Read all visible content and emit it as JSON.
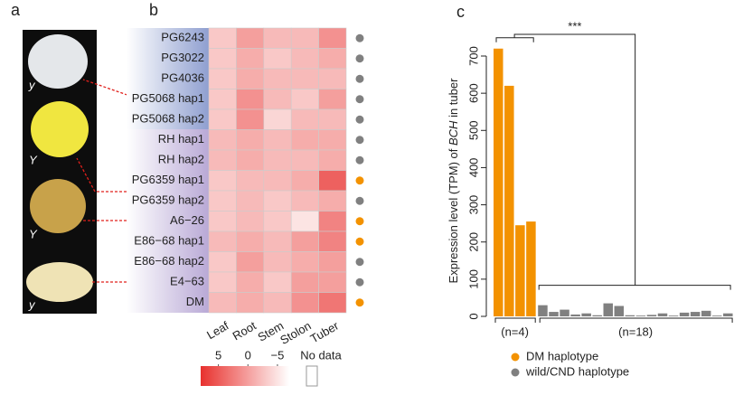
{
  "panel_labels": [
    "a",
    "b",
    "c"
  ],
  "panel_a": {
    "tuber_labels": [
      "y",
      "Y",
      "Y",
      "y"
    ]
  },
  "chart_data": [
    {
      "type": "heatmap",
      "rows": [
        "PG6243",
        "PG3022",
        "PG4036",
        "PG5068 hap1",
        "PG5068 hap2",
        "RH hap1",
        "RH hap2",
        "PG6359 hap1",
        "PG6359 hap2",
        "A6−26",
        "E86−68 hap1",
        "E86−68 hap2",
        "E4−63",
        "DM"
      ],
      "columns": [
        "Leaf",
        "Root",
        "Stem",
        "Stolon",
        "Tuber"
      ],
      "values": [
        [
          -3,
          0,
          -2,
          -2,
          1
        ],
        [
          -3,
          -1,
          -3,
          -2,
          -1
        ],
        [
          -3,
          -1,
          -2,
          -2,
          -2
        ],
        [
          -3,
          1,
          -2,
          -3,
          0
        ],
        [
          -3,
          1,
          -4,
          -2,
          -2
        ],
        [
          -2,
          -1,
          -2,
          -1,
          -1
        ],
        [
          -2,
          -1,
          -2,
          -2,
          -1
        ],
        [
          -3,
          -2,
          -2,
          -1,
          4.5
        ],
        [
          -3,
          -2,
          -3,
          -2,
          -1
        ],
        [
          -3,
          -2,
          -3,
          -5,
          2
        ],
        [
          -2,
          -1,
          -2,
          0,
          2
        ],
        [
          -3,
          0,
          -2,
          -1,
          0
        ],
        [
          -3,
          -1,
          -3,
          0,
          0
        ],
        [
          -2,
          -1,
          -2,
          1,
          3
        ]
      ],
      "row_dot_colors": [
        "#808080",
        "#808080",
        "#808080",
        "#808080",
        "#808080",
        "#808080",
        "#808080",
        "#f39200",
        "#808080",
        "#f39200",
        "#f39200",
        "#808080",
        "#808080",
        "#f39200"
      ],
      "color_low": "#ffffff",
      "color_high": "#e8312e",
      "colorbar": {
        "lim": [
          8,
          -7
        ],
        "ticks": [
          5,
          0,
          {
            "value": -5,
            "label": "−5"
          }
        ]
      },
      "no_data_label": "No data"
    },
    {
      "type": "bar",
      "y_label": [
        "Expression level (TPM) of ",
        "BCH",
        " in tuber"
      ],
      "ylim": [
        0,
        740
      ],
      "yticks": [
        0,
        100,
        200,
        300,
        400,
        500,
        600,
        700
      ],
      "significance": "***",
      "series": [
        {
          "name": "DM haplotype",
          "color": "#f39200",
          "group_label": "(n=4)",
          "values": [
            720,
            620,
            245,
            255
          ]
        },
        {
          "name": "wild/CND haplotype",
          "color": "#808080",
          "group_label": "(n=18)",
          "values": [
            30,
            12,
            18,
            5,
            8,
            3,
            35,
            28,
            3,
            2,
            4,
            8,
            2,
            10,
            12,
            15,
            2,
            8
          ]
        }
      ]
    }
  ]
}
